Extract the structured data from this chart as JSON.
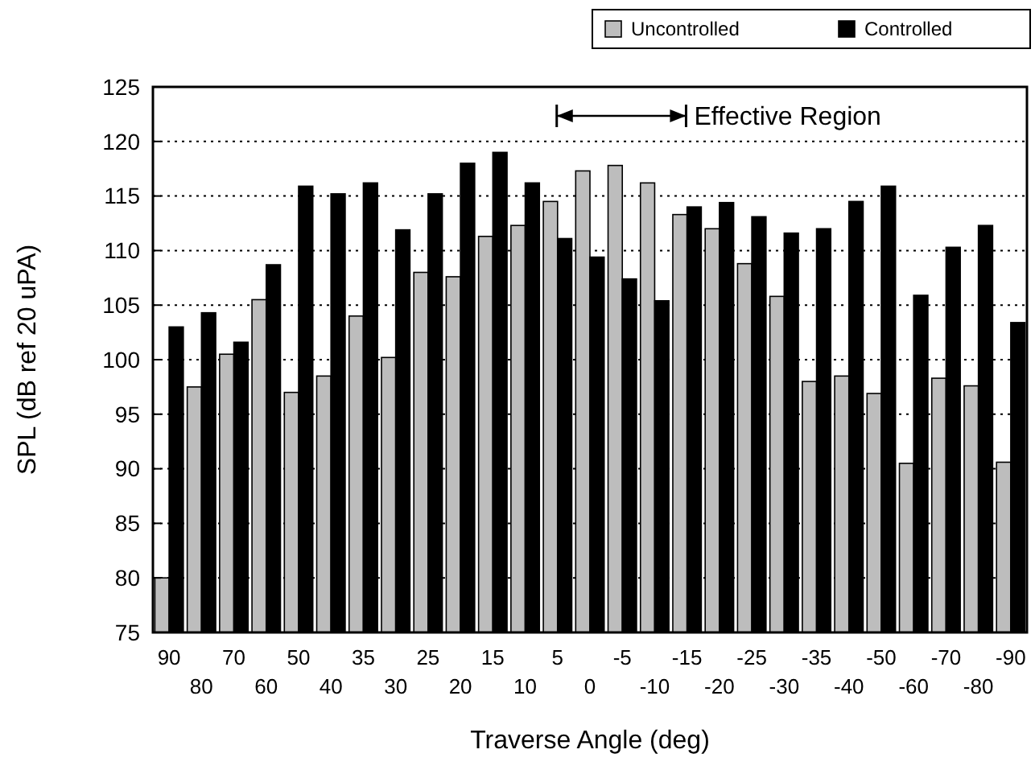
{
  "chart_data": {
    "type": "bar",
    "xlabel": "Traverse Angle (deg)",
    "ylabel": "SPL (dB ref 20 uPA)",
    "categories": [
      "90",
      "80",
      "70",
      "60",
      "50",
      "40",
      "35",
      "30",
      "25",
      "20",
      "15",
      "10",
      "5",
      "0",
      "-5",
      "-10",
      "-15",
      "-20",
      "-25",
      "-30",
      "-35",
      "-40",
      "-50",
      "-60",
      "-70",
      "-80",
      "-90"
    ],
    "series": [
      {
        "name": "Uncontrolled",
        "color": "#bdbdbd",
        "values": [
          80,
          97.5,
          100.5,
          105.5,
          97,
          98.5,
          104,
          100.2,
          108,
          107.6,
          111.3,
          112.3,
          114.5,
          117.3,
          117.8,
          116.2,
          113.3,
          112,
          108.8,
          105.8,
          98,
          98.5,
          96.9,
          90.5,
          98.3,
          97.6,
          90.6
        ]
      },
      {
        "name": "Controlled",
        "color": "#000000",
        "values": [
          103,
          104.3,
          101.6,
          108.7,
          115.9,
          115.2,
          116.2,
          111.9,
          115.2,
          118,
          119,
          116.2,
          111.1,
          109.4,
          107.4,
          105.4,
          114,
          114.4,
          113.1,
          111.6,
          112,
          114.5,
          115.9,
          105.9,
          110.3,
          112.3,
          103.4
        ]
      }
    ],
    "ylim": [
      75,
      125
    ],
    "yticks": [
      75,
      80,
      85,
      90,
      95,
      100,
      105,
      110,
      115,
      120,
      125
    ],
    "grid": "y",
    "legend": "top right",
    "annotations": [
      "Effective Region"
    ]
  }
}
